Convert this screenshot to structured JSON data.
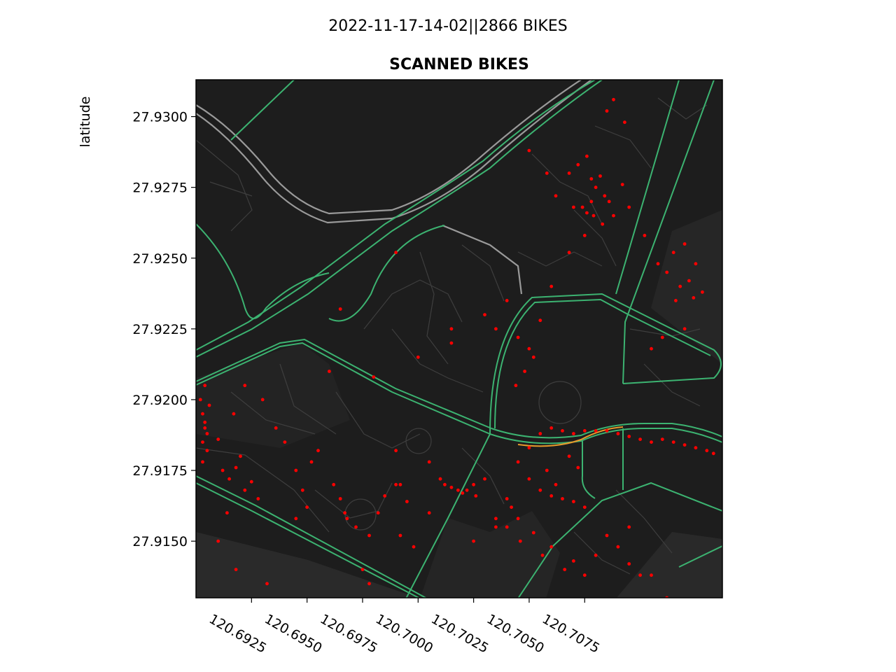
{
  "suptitle": "2022-11-17-14-02||2866 BIKES",
  "chart_data": {
    "type": "scatter",
    "title": "SCANNED BIKES",
    "xlabel": "",
    "ylabel": "latitude",
    "xlim": [
      120.69,
      120.7137
    ],
    "ylim": [
      27.913,
      27.9313
    ],
    "xticks": [
      120.6925,
      120.695,
      120.6975,
      120.7,
      120.7025,
      120.705,
      120.7075
    ],
    "xtick_labels": [
      "120.6925",
      "120.6950",
      "120.6975",
      "120.7000",
      "120.7025",
      "120.7050",
      "120.7075"
    ],
    "yticks": [
      27.915,
      27.9175,
      27.92,
      27.9225,
      27.925,
      27.9275,
      27.93
    ],
    "ytick_labels": [
      "27.9150",
      "27.9175",
      "27.9200",
      "27.9225",
      "27.9250",
      "27.9275",
      "27.9300"
    ],
    "background": "dark street basemap",
    "point_color": "#ff0000",
    "series": [
      {
        "x": [
          120.6902,
          120.6903,
          120.6904,
          120.6903,
          120.6905,
          120.6904,
          120.6906,
          120.6905,
          120.6903,
          120.6904,
          120.691,
          120.6912,
          120.6915,
          120.6918,
          120.692,
          120.6922,
          120.6925,
          120.6928,
          120.6914,
          120.6917,
          120.693,
          120.6936,
          120.694,
          120.6945,
          120.6948,
          120.695,
          120.6945,
          120.6952,
          120.6955,
          120.6962,
          120.6965,
          120.6967,
          120.6968,
          120.6972,
          120.6978,
          120.6982,
          120.6985,
          120.699,
          120.6995,
          120.6975,
          120.6992,
          120.6998,
          120.7005,
          120.701,
          120.7012,
          120.7015,
          120.7018,
          120.702,
          120.7022,
          120.7025,
          120.7026,
          120.703,
          120.7035,
          120.704,
          120.7045,
          120.705,
          120.7055,
          120.706,
          120.7065,
          120.707,
          120.7075,
          120.708,
          120.7085,
          120.709,
          120.7095,
          120.71,
          120.7105,
          120.711,
          120.7115,
          120.712,
          120.7125,
          120.713,
          120.7133,
          120.705,
          120.7055,
          120.706,
          120.7065,
          120.707,
          120.7075,
          120.7058,
          120.7062,
          120.7068,
          120.7072,
          120.7045,
          120.704,
          120.7046,
          120.7052,
          120.7056,
          120.706,
          120.7066,
          120.707,
          120.7075,
          120.708,
          120.7085,
          120.709,
          120.7095,
          120.71,
          120.703,
          120.7035,
          120.704,
          120.7045,
          120.705,
          120.7055,
          120.7048,
          120.7052,
          120.7044,
          120.706,
          120.7068,
          120.7075,
          120.7083,
          120.7088,
          120.7095,
          120.7102,
          120.7108,
          120.7112,
          120.7118,
          120.7122,
          120.7115,
          120.712,
          120.7125,
          120.7128,
          120.7116,
          120.7124,
          120.7105,
          120.711,
          120.712,
          120.7068,
          120.7072,
          120.7076,
          120.7078,
          120.708,
          120.7082,
          120.7084,
          120.7074,
          120.7079,
          120.7086,
          120.7092,
          120.7085,
          120.7088,
          120.7093,
          120.705,
          120.7058,
          120.7062,
          120.707,
          120.7078,
          120.7076,
          120.699,
          120.6965,
          120.698,
          120.7,
          120.7025,
          120.7035,
          120.7042,
          120.7015,
          120.7015,
          120.699,
          120.6992,
          120.7005,
          120.691,
          120.6918,
          120.6932,
          120.6922,
          120.696,
          120.6978,
          120.7095,
          120.7105,
          120.7112
        ],
        "y": [
          27.92,
          27.9195,
          27.919,
          27.9185,
          27.9188,
          27.9205,
          27.9198,
          27.9182,
          27.9178,
          27.9192,
          27.9186,
          27.9175,
          27.9172,
          27.9176,
          27.918,
          27.9168,
          27.9171,
          27.9165,
          27.916,
          27.9195,
          27.92,
          27.919,
          27.9185,
          27.9175,
          27.9168,
          27.9162,
          27.9158,
          27.9178,
          27.9182,
          27.917,
          27.9165,
          27.916,
          27.9158,
          27.9155,
          27.9152,
          27.916,
          27.9166,
          27.917,
          27.9164,
          27.914,
          27.9152,
          27.9148,
          27.9178,
          27.9172,
          27.917,
          27.9169,
          27.9168,
          27.9167,
          27.9168,
          27.917,
          27.9166,
          27.9172,
          27.9158,
          27.9165,
          27.9178,
          27.9183,
          27.9188,
          27.919,
          27.9189,
          27.9188,
          27.9189,
          27.9189,
          27.9189,
          27.9188,
          27.9187,
          27.9186,
          27.9185,
          27.9186,
          27.9185,
          27.9184,
          27.9183,
          27.9182,
          27.9181,
          27.9172,
          27.9168,
          27.9166,
          27.9165,
          27.9164,
          27.9162,
          27.9175,
          27.917,
          27.918,
          27.9176,
          27.9158,
          27.9155,
          27.915,
          27.9153,
          27.9145,
          27.9148,
          27.914,
          27.9143,
          27.9138,
          27.9145,
          27.9152,
          27.9148,
          27.9142,
          27.9138,
          27.923,
          27.9225,
          27.9235,
          27.9222,
          27.9218,
          27.9228,
          27.921,
          27.9215,
          27.9205,
          27.924,
          27.9252,
          27.9258,
          27.9262,
          27.9265,
          27.9268,
          27.9258,
          27.9248,
          27.9245,
          27.924,
          27.9242,
          27.9252,
          27.9255,
          27.9248,
          27.9238,
          27.9235,
          27.9236,
          27.9218,
          27.9222,
          27.9225,
          27.928,
          27.9283,
          27.9286,
          27.9278,
          27.9275,
          27.9279,
          27.9272,
          27.9268,
          27.9265,
          27.927,
          27.9276,
          27.9302,
          27.9306,
          27.9298,
          27.9288,
          27.928,
          27.9272,
          27.9268,
          27.927,
          27.9266,
          27.9252,
          27.9232,
          27.9208,
          27.9215,
          27.915,
          27.9155,
          27.9162,
          27.922,
          27.9225,
          27.9182,
          27.917,
          27.916,
          27.915,
          27.914,
          27.9135,
          27.9205,
          27.921,
          27.9135,
          27.9155,
          27.9138,
          27.913
        ]
      }
    ]
  }
}
